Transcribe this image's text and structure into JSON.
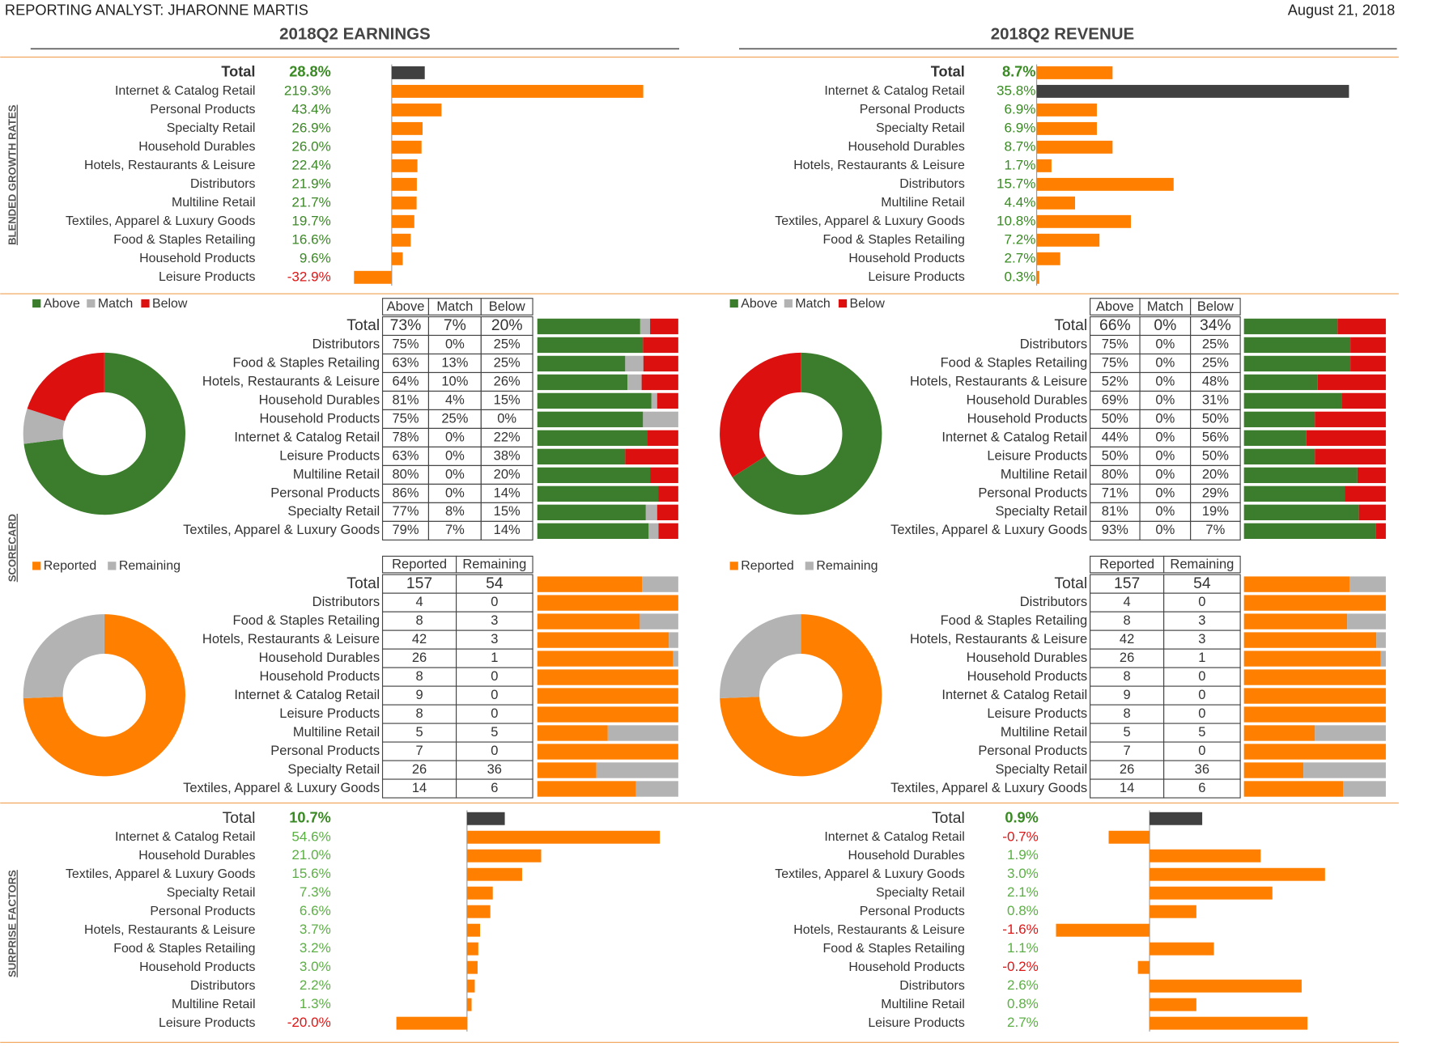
{
  "header": {
    "analyst": "REPORTING ANALYST:  JHARONNE MARTIS",
    "date": "August 21, 2018"
  },
  "section_labels": [
    "BLENDED GROWTH RATES",
    "SCORECARD",
    "SURPRISE FACTORS"
  ],
  "panels": [
    {
      "title": "2018Q2 EARNINGS",
      "growth": {
        "type": "bar",
        "categories": [
          "Total",
          "Internet & Catalog Retail",
          "Personal Products",
          "Specialty Retail",
          "Household Durables",
          "Hotels, Restaurants & Leisure",
          "Distributors",
          "Multiline Retail",
          "Textiles, Apparel & Luxury Goods",
          "Food & Staples Retailing",
          "Household Products",
          "Leisure Products"
        ],
        "values": [
          28.8,
          219.3,
          43.4,
          26.9,
          26.0,
          22.4,
          21.9,
          21.7,
          19.7,
          16.6,
          9.6,
          -32.9
        ],
        "value_labels": [
          "28.8%",
          "219.3%",
          "43.4%",
          "26.9%",
          "26.0%",
          "22.4%",
          "21.9%",
          "21.7%",
          "19.7%",
          "16.6%",
          "9.6%",
          "-32.9%"
        ],
        "colors": [
          "#404040",
          "#ff8000",
          "#ff8000",
          "#ff8000",
          "#ff8000",
          "#ff8000",
          "#ff8000",
          "#ff8000",
          "#ff8000",
          "#ff8000",
          "#ff8000",
          "#ff8000"
        ]
      },
      "scorecard": {
        "type": "donut-table",
        "series": [
          {
            "name": "Above",
            "color": "#3b7d2c"
          },
          {
            "name": "Match",
            "color": "#b3b3b3"
          },
          {
            "name": "Below",
            "color": "#dd1010"
          }
        ],
        "categories": [
          "Total",
          "Distributors",
          "Food & Staples Retailing",
          "Hotels, Restaurants & Leisure",
          "Household Durables",
          "Household Products",
          "Internet & Catalog Retail",
          "Leisure Products",
          "Multiline Retail",
          "Personal Products",
          "Specialty Retail",
          "Textiles, Apparel & Luxury Goods"
        ],
        "values": [
          [
            73,
            7,
            20
          ],
          [
            75,
            0,
            25
          ],
          [
            63,
            13,
            25
          ],
          [
            64,
            10,
            26
          ],
          [
            81,
            4,
            15
          ],
          [
            75,
            25,
            0
          ],
          [
            78,
            0,
            22
          ],
          [
            63,
            0,
            38
          ],
          [
            80,
            0,
            20
          ],
          [
            86,
            0,
            14
          ],
          [
            77,
            8,
            15
          ],
          [
            79,
            7,
            14
          ]
        ],
        "value_labels": [
          [
            "73%",
            "7%",
            "20%"
          ],
          [
            "75%",
            "0%",
            "25%"
          ],
          [
            "63%",
            "13%",
            "25%"
          ],
          [
            "64%",
            "10%",
            "26%"
          ],
          [
            "81%",
            "4%",
            "15%"
          ],
          [
            "75%",
            "25%",
            "0%"
          ],
          [
            "78%",
            "0%",
            "22%"
          ],
          [
            "63%",
            "0%",
            "38%"
          ],
          [
            "80%",
            "0%",
            "20%"
          ],
          [
            "86%",
            "0%",
            "14%"
          ],
          [
            "77%",
            "8%",
            "15%"
          ],
          [
            "79%",
            "7%",
            "14%"
          ]
        ]
      },
      "reported": {
        "type": "donut-table",
        "series": [
          {
            "name": "Reported",
            "color": "#ff8000"
          },
          {
            "name": "Remaining",
            "color": "#b3b3b3"
          }
        ],
        "categories": [
          "Total",
          "Distributors",
          "Food & Staples Retailing",
          "Hotels, Restaurants & Leisure",
          "Household Durables",
          "Household Products",
          "Internet & Catalog Retail",
          "Leisure Products",
          "Multiline Retail",
          "Personal Products",
          "Specialty Retail",
          "Textiles, Apparel & Luxury Goods"
        ],
        "values": [
          [
            157,
            54
          ],
          [
            4,
            0
          ],
          [
            8,
            3
          ],
          [
            42,
            3
          ],
          [
            26,
            1
          ],
          [
            8,
            0
          ],
          [
            9,
            0
          ],
          [
            8,
            0
          ],
          [
            5,
            5
          ],
          [
            7,
            0
          ],
          [
            26,
            36
          ],
          [
            14,
            6
          ]
        ]
      },
      "surprise": {
        "type": "bar",
        "categories": [
          "Total",
          "Internet & Catalog Retail",
          "Household Durables",
          "Textiles, Apparel & Luxury Goods",
          "Specialty Retail",
          "Personal Products",
          "Hotels, Restaurants & Leisure",
          "Food & Staples Retailing",
          "Household Products",
          "Distributors",
          "Multiline Retail",
          "Leisure Products"
        ],
        "values": [
          10.7,
          54.6,
          21.0,
          15.6,
          7.3,
          6.6,
          3.7,
          3.2,
          3.0,
          2.2,
          1.3,
          -20.0
        ],
        "value_labels": [
          "10.7%",
          "54.6%",
          "21.0%",
          "15.6%",
          "7.3%",
          "6.6%",
          "3.7%",
          "3.2%",
          "3.0%",
          "2.2%",
          "1.3%",
          "-20.0%"
        ],
        "colors": [
          "#404040",
          "#ff8000",
          "#ff8000",
          "#ff8000",
          "#ff8000",
          "#ff8000",
          "#ff8000",
          "#ff8000",
          "#ff8000",
          "#ff8000",
          "#ff8000",
          "#ff8000"
        ]
      }
    },
    {
      "title": "2018Q2 REVENUE",
      "growth": {
        "type": "bar",
        "categories": [
          "Total",
          "Internet & Catalog Retail",
          "Personal Products",
          "Specialty Retail",
          "Household Durables",
          "Hotels, Restaurants & Leisure",
          "Distributors",
          "Multiline Retail",
          "Textiles, Apparel & Luxury Goods",
          "Food & Staples Retailing",
          "Household Products",
          "Leisure Products"
        ],
        "values": [
          8.7,
          35.8,
          6.9,
          6.9,
          8.7,
          1.7,
          15.7,
          4.4,
          10.8,
          7.2,
          2.7,
          0.3
        ],
        "value_labels": [
          "8.7%",
          "35.8%",
          "6.9%",
          "6.9%",
          "8.7%",
          "1.7%",
          "15.7%",
          "4.4%",
          "10.8%",
          "7.2%",
          "2.7%",
          "0.3%"
        ],
        "colors": [
          "#ff8000",
          "#404040",
          "#ff8000",
          "#ff8000",
          "#ff8000",
          "#ff8000",
          "#ff8000",
          "#ff8000",
          "#ff8000",
          "#ff8000",
          "#ff8000",
          "#ff8000"
        ]
      },
      "scorecard": {
        "type": "donut-table",
        "series": [
          {
            "name": "Above",
            "color": "#3b7d2c"
          },
          {
            "name": "Match",
            "color": "#b3b3b3"
          },
          {
            "name": "Below",
            "color": "#dd1010"
          }
        ],
        "categories": [
          "Total",
          "Distributors",
          "Food & Staples Retailing",
          "Hotels, Restaurants & Leisure",
          "Household Durables",
          "Household Products",
          "Internet & Catalog Retail",
          "Leisure Products",
          "Multiline Retail",
          "Personal Products",
          "Specialty Retail",
          "Textiles, Apparel & Luxury Goods"
        ],
        "values": [
          [
            66,
            0,
            34
          ],
          [
            75,
            0,
            25
          ],
          [
            75,
            0,
            25
          ],
          [
            52,
            0,
            48
          ],
          [
            69,
            0,
            31
          ],
          [
            50,
            0,
            50
          ],
          [
            44,
            0,
            56
          ],
          [
            50,
            0,
            50
          ],
          [
            80,
            0,
            20
          ],
          [
            71,
            0,
            29
          ],
          [
            81,
            0,
            19
          ],
          [
            93,
            0,
            7
          ]
        ],
        "value_labels": [
          [
            "66%",
            "0%",
            "34%"
          ],
          [
            "75%",
            "0%",
            "25%"
          ],
          [
            "75%",
            "0%",
            "25%"
          ],
          [
            "52%",
            "0%",
            "48%"
          ],
          [
            "69%",
            "0%",
            "31%"
          ],
          [
            "50%",
            "0%",
            "50%"
          ],
          [
            "44%",
            "0%",
            "56%"
          ],
          [
            "50%",
            "0%",
            "50%"
          ],
          [
            "80%",
            "0%",
            "20%"
          ],
          [
            "71%",
            "0%",
            "29%"
          ],
          [
            "81%",
            "0%",
            "19%"
          ],
          [
            "93%",
            "0%",
            "7%"
          ]
        ]
      },
      "reported": {
        "type": "donut-table",
        "series": [
          {
            "name": "Reported",
            "color": "#ff8000"
          },
          {
            "name": "Remaining",
            "color": "#b3b3b3"
          }
        ],
        "categories": [
          "Total",
          "Distributors",
          "Food & Staples Retailing",
          "Hotels, Restaurants & Leisure",
          "Household Durables",
          "Household Products",
          "Internet & Catalog Retail",
          "Leisure Products",
          "Multiline Retail",
          "Personal Products",
          "Specialty Retail",
          "Textiles, Apparel & Luxury Goods"
        ],
        "values": [
          [
            157,
            54
          ],
          [
            4,
            0
          ],
          [
            8,
            3
          ],
          [
            42,
            3
          ],
          [
            26,
            1
          ],
          [
            8,
            0
          ],
          [
            9,
            0
          ],
          [
            8,
            0
          ],
          [
            5,
            5
          ],
          [
            7,
            0
          ],
          [
            26,
            36
          ],
          [
            14,
            6
          ]
        ]
      },
      "surprise": {
        "type": "bar",
        "categories": [
          "Total",
          "Internet & Catalog Retail",
          "Household Durables",
          "Textiles, Apparel & Luxury Goods",
          "Specialty Retail",
          "Personal Products",
          "Hotels, Restaurants & Leisure",
          "Food & Staples Retailing",
          "Household Products",
          "Distributors",
          "Multiline Retail",
          "Leisure Products"
        ],
        "values": [
          0.9,
          -0.7,
          1.9,
          3.0,
          2.1,
          0.8,
          -1.6,
          1.1,
          -0.2,
          2.6,
          0.8,
          2.7
        ],
        "value_labels": [
          "0.9%",
          "-0.7%",
          "1.9%",
          "3.0%",
          "2.1%",
          "0.8%",
          "-1.6%",
          "1.1%",
          "-0.2%",
          "2.6%",
          "0.8%",
          "2.7%"
        ],
        "colors": [
          "#404040",
          "#ff8000",
          "#ff8000",
          "#ff8000",
          "#ff8000",
          "#ff8000",
          "#ff8000",
          "#ff8000",
          "#ff8000",
          "#ff8000",
          "#ff8000",
          "#ff8000"
        ]
      }
    }
  ]
}
